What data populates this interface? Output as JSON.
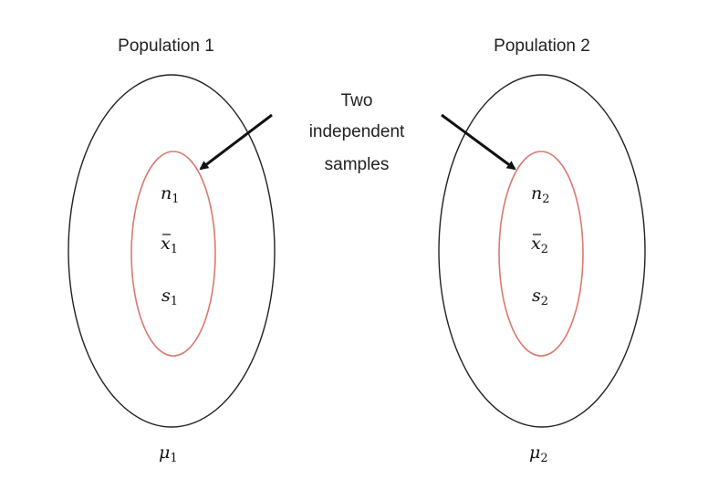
{
  "populations": [
    {
      "title": "Population 1",
      "param_base": "μ",
      "param_sub": "1",
      "stats": [
        {
          "base": "n",
          "sub": "1",
          "bar": false
        },
        {
          "base": "x",
          "sub": "1",
          "bar": true
        },
        {
          "base": "s",
          "sub": "1",
          "bar": false
        }
      ]
    },
    {
      "title": "Population 2",
      "param_base": "μ",
      "param_sub": "2",
      "stats": [
        {
          "base": "n",
          "sub": "2",
          "bar": false
        },
        {
          "base": "x",
          "sub": "2",
          "bar": true
        },
        {
          "base": "s",
          "sub": "2",
          "bar": false
        }
      ]
    }
  ],
  "center_label": [
    "Two",
    "independent",
    "samples"
  ],
  "colors": {
    "population_outline": "#222222",
    "sample_outline": "#d9796f",
    "arrow": "#111111"
  }
}
